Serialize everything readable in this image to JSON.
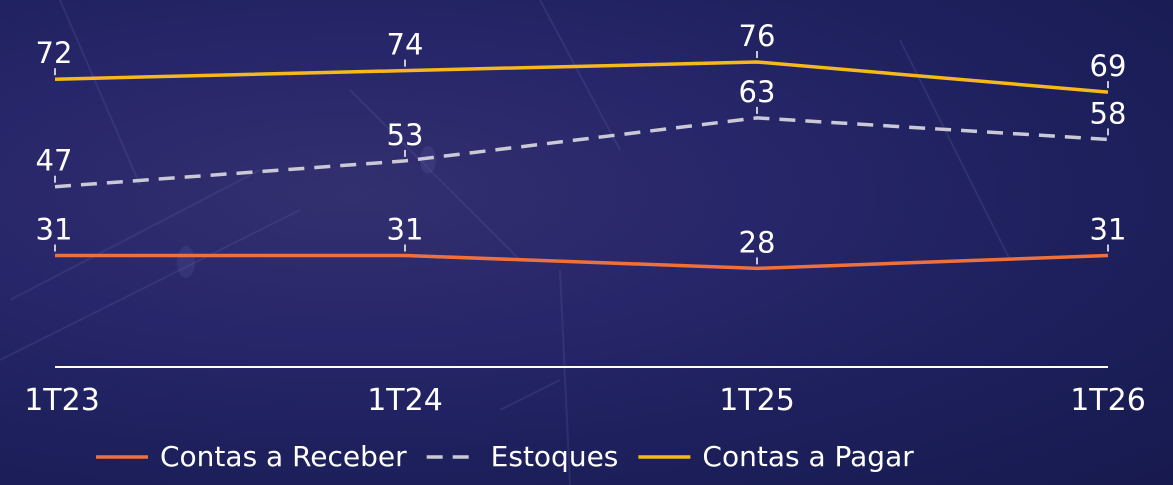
{
  "chart_data": {
    "type": "line",
    "categories": [
      "1T23",
      "1T24",
      "1T25",
      "1T26"
    ],
    "series": [
      {
        "name": "Contas a Receber",
        "values": [
          31,
          31,
          28,
          31
        ],
        "color": "#f0703c",
        "dash": false
      },
      {
        "name": "Estoques",
        "values": [
          47,
          53,
          63,
          58
        ],
        "color": "#c9cad6",
        "dash": true
      },
      {
        "name": "Contas a Pagar",
        "values": [
          72,
          74,
          76,
          69
        ],
        "color": "#f6b81a",
        "dash": false
      }
    ],
    "ylim": [
      0,
      80
    ],
    "legend": "bottom",
    "grid": false,
    "data_labels": true
  }
}
